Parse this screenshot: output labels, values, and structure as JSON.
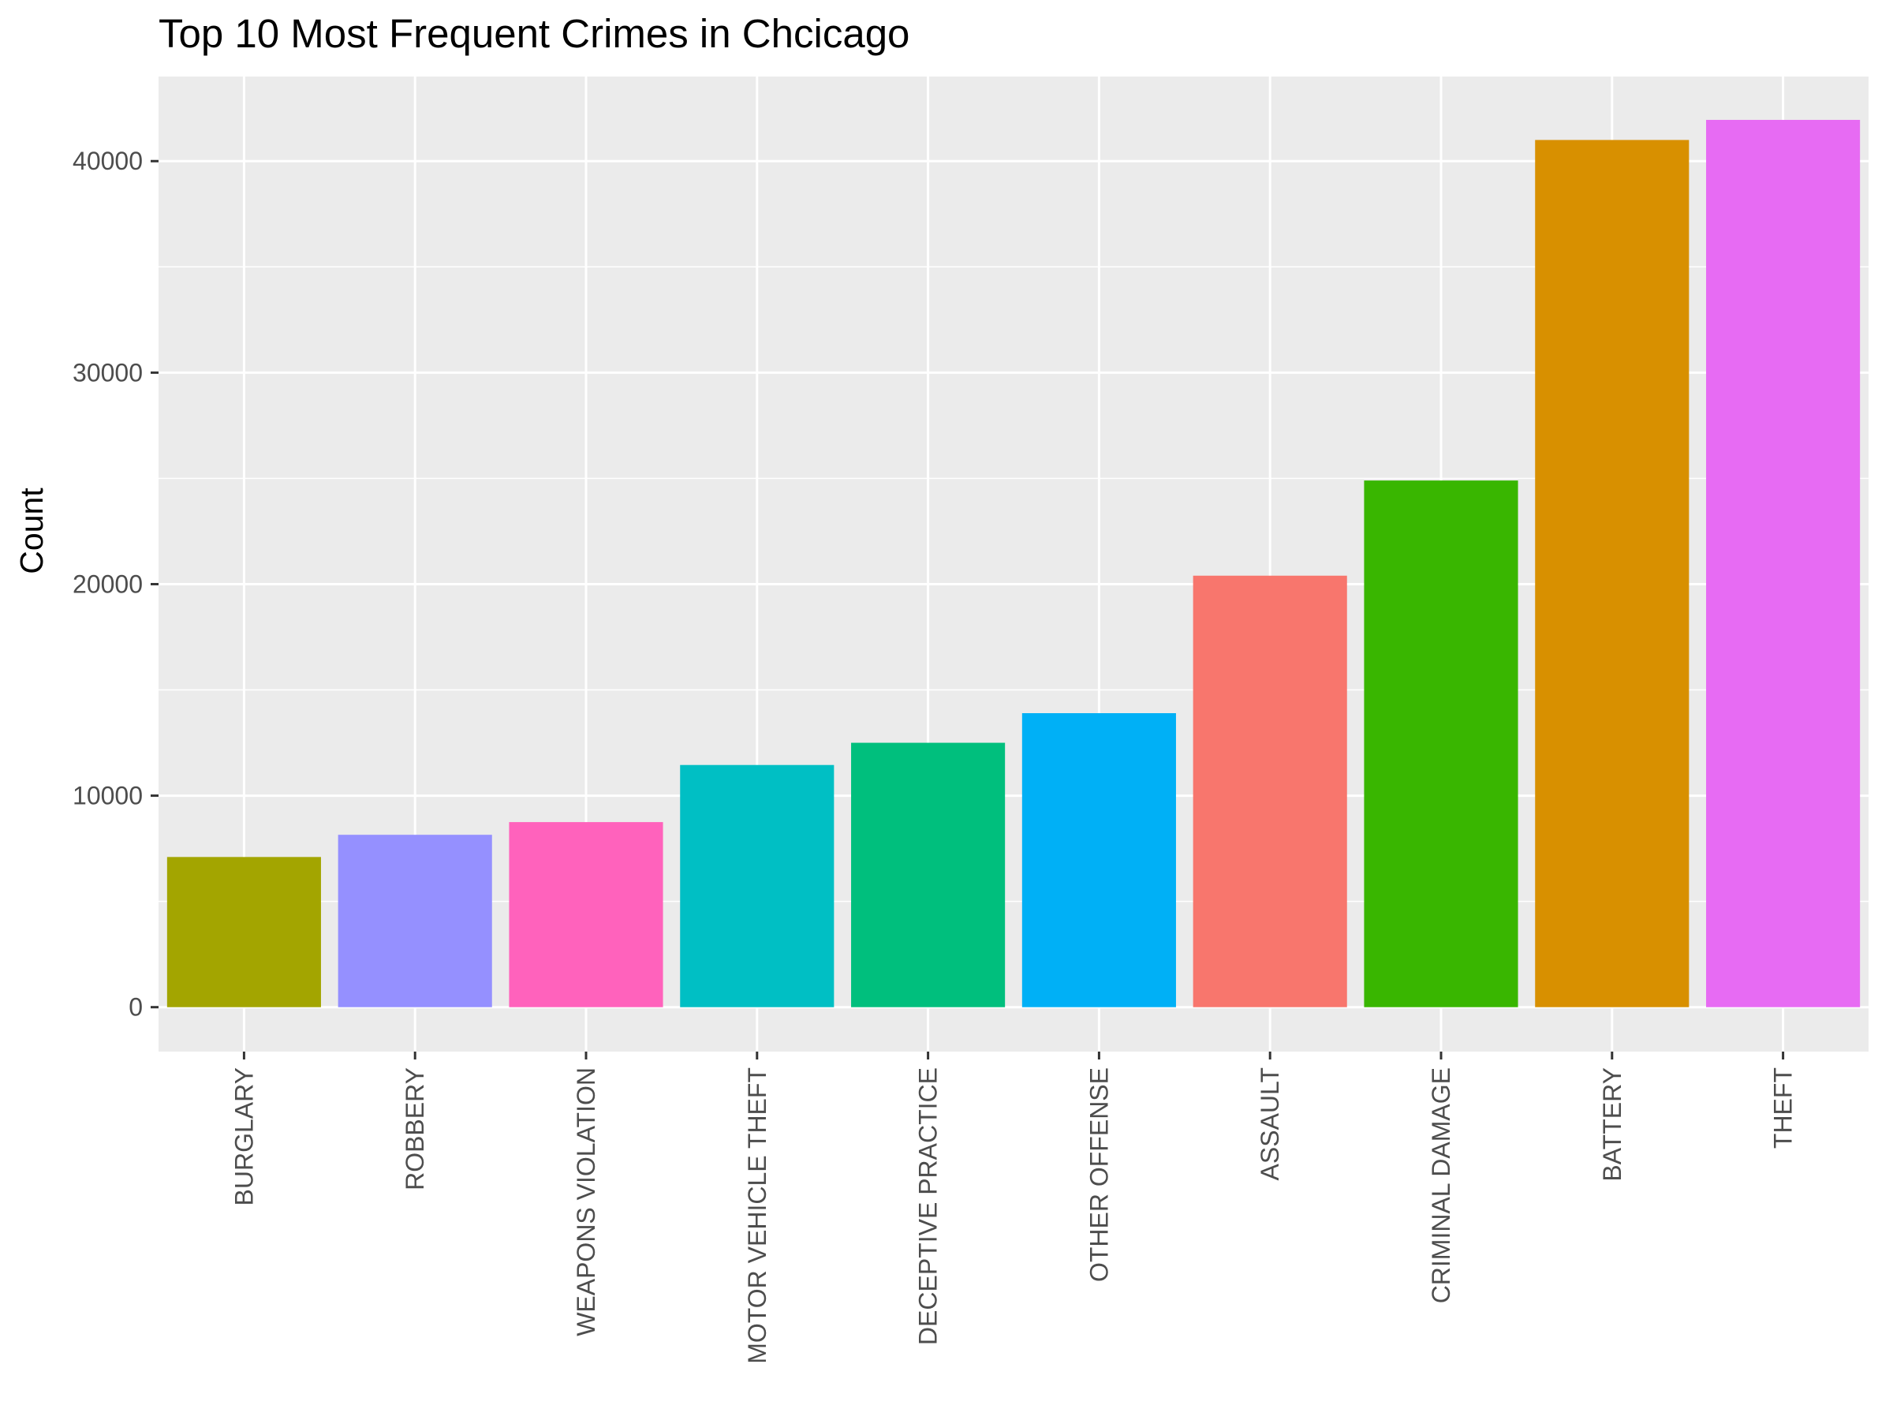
{
  "chart_data": {
    "type": "bar",
    "title": "Top 10 Most Frequent Crimes in Chcicago",
    "xlabel": "",
    "ylabel": "Count",
    "ylim": [
      -2100,
      44000
    ],
    "yticks": [
      0,
      10000,
      20000,
      30000,
      40000
    ],
    "grid": true,
    "legend": "none",
    "categories": [
      "BURGLARY",
      "ROBBERY",
      "WEAPONS VIOLATION",
      "MOTOR VEHICLE THEFT",
      "DECEPTIVE PRACTICE",
      "OTHER OFFENSE",
      "ASSAULT",
      "CRIMINAL DAMAGE",
      "BATTERY",
      "THEFT"
    ],
    "values": [
      7100,
      8150,
      8750,
      11450,
      12500,
      13900,
      20400,
      24900,
      41000,
      41950
    ],
    "colors": [
      "#A3A500",
      "#9590FF",
      "#FF62BC",
      "#00BFC4",
      "#00BF7D",
      "#00B0F6",
      "#F8766D",
      "#39B600",
      "#D89000",
      "#E76BF3"
    ],
    "panel_background": "#EBEBEB",
    "grid_color": "#FFFFFF"
  }
}
